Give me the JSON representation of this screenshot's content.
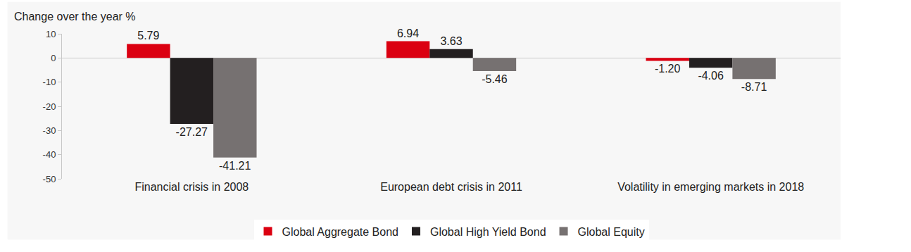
{
  "chart_data": {
    "type": "bar",
    "ylabel": "Change over the year %",
    "categories": [
      "Financial crisis in 2008",
      "European debt crisis in 2011",
      "Volatility in emerging markets in 2018"
    ],
    "series": [
      {
        "name": "Global Aggregate Bond",
        "color": "#db0011",
        "values": [
          5.79,
          6.94,
          -1.2
        ],
        "value_labels": [
          "5.79",
          "6.94",
          "-1.20"
        ]
      },
      {
        "name": "Global High Yield Bond",
        "color": "#231f20",
        "values": [
          -27.27,
          3.63,
          -4.06
        ],
        "value_labels": [
          "-27.27",
          "3.63",
          "-4.06"
        ]
      },
      {
        "name": "Global Equity",
        "color": "#767171",
        "values": [
          -41.21,
          -5.46,
          -8.71
        ],
        "value_labels": [
          "-41.21",
          "-5.46",
          "-8.71"
        ]
      }
    ],
    "ylim": [
      -50,
      10
    ],
    "yticks": [
      -50,
      -40,
      -30,
      -20,
      -10,
      0,
      10
    ],
    "grid": false,
    "legend": "bottom",
    "data_labels": true
  }
}
